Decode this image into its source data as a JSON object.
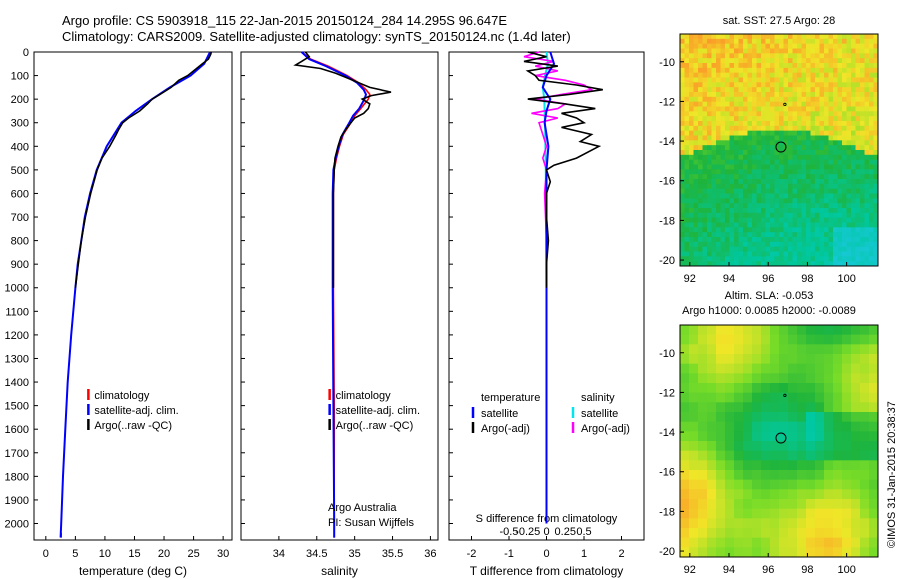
{
  "header": {
    "line1": "Argo profile: CS 5903918_115 22-Jan-2015 20150124_284 14.295S 96.647E",
    "line2": "Climatology: CARS2009. Satellite-adjusted climatology: synTS_20150124.nc (1.4d later)"
  },
  "colors": {
    "clim": "#ff0000",
    "sat": "#0000ff",
    "argo": "#000000",
    "sat_s": "#00e5ee",
    "argo_s": "#ff00ff",
    "marker": "#000000"
  },
  "depth_ticks": [
    0,
    100,
    200,
    300,
    400,
    500,
    600,
    700,
    800,
    900,
    1000,
    1100,
    1200,
    1300,
    1400,
    1500,
    1600,
    1700,
    1800,
    1900,
    2000
  ],
  "side_label": "©IMOS 31-Jan-2015 20:38:37",
  "chart_data": [
    {
      "type": "line",
      "id": "temperature",
      "xlabel": "temperature (deg C)",
      "xlim": [
        -2,
        31.5
      ],
      "ylim": [
        2070,
        0
      ],
      "xticks": [
        0,
        5,
        10,
        15,
        20,
        25,
        30
      ],
      "legend": [
        "climatology",
        "satellite-adj. clim.",
        "Argo(..raw -QC)"
      ],
      "legend_position": "lower-center",
      "series": [
        {
          "name": "climatology",
          "color": "clim",
          "depth": [
            2040,
            2060
          ],
          "values": [
            2.6,
            2.6
          ]
        },
        {
          "name": "satellite-adj. clim.",
          "color": "sat",
          "depth": [
            0,
            50,
            100,
            150,
            200,
            250,
            300,
            400,
            500,
            600,
            700,
            800,
            900,
            1000,
            1200,
            1400,
            1600,
            1800,
            2000,
            2060
          ],
          "values": [
            27.8,
            26.8,
            24.5,
            21.0,
            18.0,
            15.2,
            12.8,
            10.3,
            8.6,
            7.5,
            6.6,
            6.0,
            5.4,
            5.0,
            4.3,
            3.7,
            3.3,
            2.9,
            2.6,
            2.5
          ]
        },
        {
          "name": "Argo(..raw -QC)",
          "color": "argo",
          "depth": [
            0,
            10,
            30,
            50,
            80,
            100,
            120,
            150,
            180,
            200,
            220,
            250,
            280,
            300,
            330,
            350,
            400,
            450,
            500,
            600,
            700,
            800,
            900,
            1000
          ],
          "values": [
            28.0,
            27.9,
            27.5,
            26.5,
            25.0,
            24.0,
            22.5,
            21.2,
            19.3,
            18.0,
            17.2,
            15.9,
            14.0,
            13.0,
            12.3,
            11.9,
            10.8,
            9.5,
            8.7,
            7.6,
            6.7,
            6.0,
            5.5,
            5.0
          ]
        }
      ]
    },
    {
      "type": "line",
      "id": "salinity",
      "xlabel": "salinity",
      "xlim": [
        33.5,
        36.1
      ],
      "ylim": [
        2070,
        0
      ],
      "xticks": [
        34,
        34.5,
        35,
        35.5,
        36
      ],
      "legend": [
        "climatology",
        "satellite-adj. clim.",
        "Argo(..raw -QC)"
      ],
      "legend_position": "lower-center",
      "annotation": [
        "Argo Australia",
        "PI: Susan Wijffels"
      ],
      "series": [
        {
          "name": "climatology",
          "color": "clim",
          "depth": [
            0,
            30,
            60,
            100,
            130,
            160,
            180,
            200,
            240,
            270,
            300,
            350,
            400,
            450,
            500,
            600,
            1000,
            1500,
            2000,
            2060
          ],
          "values": [
            34.3,
            34.42,
            34.65,
            34.9,
            35.05,
            35.15,
            35.2,
            35.18,
            35.08,
            35.0,
            34.95,
            34.85,
            34.8,
            34.76,
            34.73,
            34.72,
            34.72,
            34.73,
            34.73,
            34.73
          ]
        },
        {
          "name": "satellite-adj. clim.",
          "color": "sat",
          "depth": [
            0,
            30,
            60,
            100,
            130,
            160,
            180,
            200,
            240,
            270,
            300,
            350,
            400,
            450,
            500,
            600,
            1000,
            1500,
            2000,
            2060
          ],
          "values": [
            34.3,
            34.4,
            34.62,
            34.88,
            35.03,
            35.12,
            35.15,
            35.13,
            35.06,
            34.98,
            34.93,
            34.84,
            34.79,
            34.75,
            34.72,
            34.71,
            34.71,
            34.72,
            34.73,
            34.73
          ]
        },
        {
          "name": "Argo(..raw -QC)",
          "color": "argo",
          "depth": [
            0,
            20,
            40,
            55,
            70,
            90,
            110,
            130,
            150,
            170,
            185,
            200,
            220,
            240,
            260,
            280,
            300,
            330,
            360,
            400,
            450,
            500,
            600,
            700,
            800,
            900,
            1000
          ],
          "values": [
            34.35,
            34.4,
            34.3,
            34.22,
            34.55,
            34.75,
            34.9,
            35.05,
            35.2,
            35.48,
            35.22,
            35.1,
            35.2,
            35.18,
            35.12,
            35.0,
            34.95,
            34.88,
            34.82,
            34.78,
            34.74,
            34.73,
            34.72,
            34.72,
            34.72,
            34.72,
            34.72
          ]
        }
      ]
    },
    {
      "type": "line",
      "id": "difference",
      "xlabel": "T difference from climatology",
      "xlabel_top": "S difference from climatology",
      "xlim": [
        -2.6,
        2.6
      ],
      "ylim": [
        2070,
        0
      ],
      "xticks": [
        -2,
        -1,
        0,
        1,
        2
      ],
      "top_ticks": [
        {
          "v": -1.0,
          "label": "-0.5"
        },
        {
          "v": -0.5,
          "label": "-0.25"
        },
        {
          "v": 0,
          "label": "0"
        },
        {
          "v": 0.5,
          "label": "0.25"
        },
        {
          "v": 1.0,
          "label": "0.5"
        }
      ],
      "legend_left": {
        "title": "temperature",
        "items": [
          "satellite",
          "Argo(-adj)"
        ]
      },
      "legend_right": {
        "title": "salinity",
        "items": [
          "satellite",
          "Argo(-adj)"
        ]
      },
      "series": [
        {
          "name": "S satellite",
          "color": "sat_s",
          "depth": [
            0,
            50,
            100,
            150,
            200,
            300,
            500,
            1000,
            1500,
            2000
          ],
          "values": [
            0.0,
            0.04,
            -0.04,
            -0.1,
            -0.06,
            -0.04,
            -0.02,
            0.0,
            0.0,
            0.0
          ]
        },
        {
          "name": "S Argo(-adj)",
          "color": "argo_s",
          "depth": [
            0,
            20,
            40,
            60,
            80,
            100,
            120,
            140,
            160,
            180,
            200,
            220,
            240,
            260,
            280,
            300,
            350,
            400,
            450,
            500,
            600,
            800,
            1000,
            1500,
            2000
          ],
          "values": [
            -0.2,
            -0.6,
            0.2,
            -0.3,
            0.3,
            -0.3,
            0.5,
            1.0,
            1.2,
            0.4,
            -0.3,
            0.5,
            0.3,
            -0.4,
            0.3,
            -0.2,
            -0.1,
            0.0,
            -0.1,
            0.0,
            -0.05,
            0.0,
            0.0,
            0.0,
            0.0
          ]
        },
        {
          "name": "T satellite",
          "color": "sat",
          "depth": [
            0,
            50,
            100,
            150,
            200,
            250,
            300,
            400,
            500,
            800,
            1000,
            1500,
            2000
          ],
          "values": [
            0.1,
            0.2,
            0.0,
            -0.1,
            0.1,
            0.0,
            -0.05,
            0.05,
            0.0,
            0.0,
            0.0,
            0.0,
            0.0
          ]
        },
        {
          "name": "T Argo(-adj)",
          "color": "argo",
          "depth": [
            0,
            20,
            40,
            60,
            80,
            100,
            120,
            140,
            160,
            180,
            200,
            220,
            240,
            260,
            280,
            300,
            320,
            350,
            380,
            400,
            450,
            480,
            500,
            550,
            600,
            700,
            800,
            900,
            1000
          ],
          "values": [
            -0.5,
            0.0,
            -0.6,
            0.3,
            -0.5,
            -0.3,
            -0.2,
            0.8,
            1.5,
            0.6,
            -0.5,
            0.5,
            1.3,
            0.4,
            0.8,
            1.0,
            0.4,
            1.2,
            0.9,
            1.4,
            0.8,
            0.2,
            0.0,
            0.1,
            0.0,
            0.0,
            0.05,
            0.0,
            0.0
          ]
        }
      ]
    }
  ],
  "maps": [
    {
      "title": "sat. SST: 27.5  Argo: 28",
      "kind": "sst",
      "xlim": [
        91.5,
        101.6
      ],
      "ylim": [
        -20.3,
        -8.6
      ],
      "xticks": [
        92,
        94,
        96,
        98,
        100
      ],
      "yticks": [
        -10,
        -12,
        -14,
        -16,
        -18,
        -20
      ],
      "argo_position": [
        96.65,
        -14.3
      ],
      "prev_position": [
        96.85,
        -12.15
      ]
    },
    {
      "title": "Altim. SLA: -0.053",
      "subtitle": "Argo h1000: 0.0085 h2000: -0.0089",
      "kind": "sla",
      "xlim": [
        91.5,
        101.6
      ],
      "ylim": [
        -20.3,
        -8.6
      ],
      "xticks": [
        92,
        94,
        96,
        98,
        100
      ],
      "yticks": [
        -10,
        -12,
        -14,
        -16,
        -18,
        -20
      ],
      "argo_position": [
        96.65,
        -14.3
      ],
      "prev_position": [
        96.85,
        -12.15
      ]
    }
  ]
}
